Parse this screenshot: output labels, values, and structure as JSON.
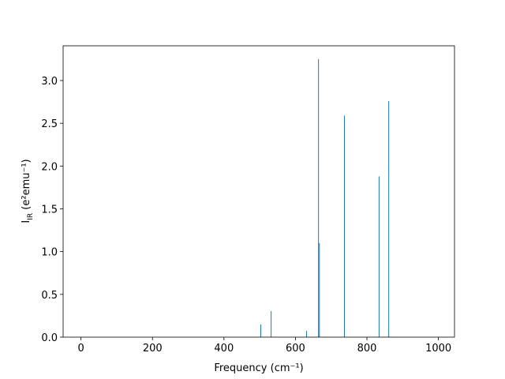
{
  "chart_data": {
    "type": "stick",
    "xlabel": "Frequency (cm⁻¹)",
    "ylabel": {
      "base": "I",
      "subscript": "IR",
      "rest": " (e²emu⁻¹)"
    },
    "x": [
      503,
      532,
      631,
      664.5,
      667,
      737,
      834,
      861
    ],
    "values": [
      0.148,
      0.305,
      0.074,
      3.25,
      1.1,
      2.59,
      1.88,
      2.76
    ],
    "color": "#1f77b4",
    "xlim": [
      -50,
      1045
    ],
    "ylim": [
      0,
      3.406
    ],
    "xticks": [
      0,
      200,
      400,
      600,
      800,
      1000
    ],
    "yticks": [
      {
        "value": 0,
        "label": "0.0"
      },
      0.5,
      {
        "value": 1,
        "label": "1.0"
      },
      1.5,
      {
        "value": 2,
        "label": "2.0"
      },
      2.5,
      {
        "value": 3,
        "label": "3.0"
      }
    ]
  }
}
